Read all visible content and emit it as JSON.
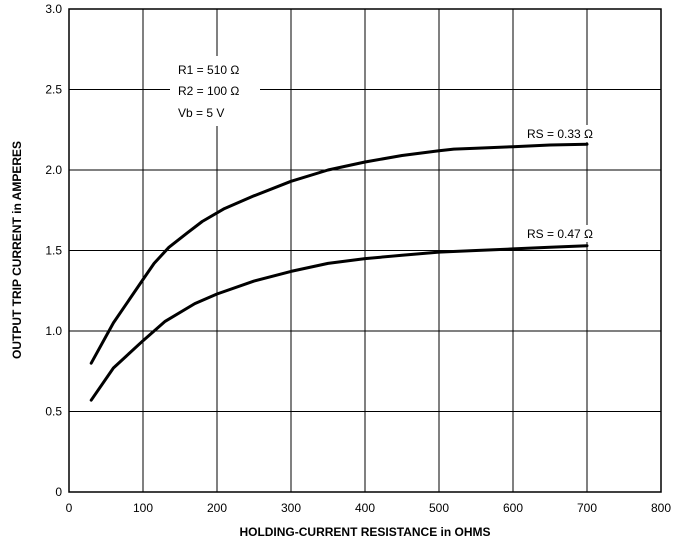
{
  "chart_data": {
    "type": "line",
    "title": "",
    "xlabel": "HOLDING-CURRENT RESISTANCE in OHMS",
    "ylabel": "OUTPUT TRIP CURRENT in AMPERES",
    "xlim": [
      0,
      800
    ],
    "ylim": [
      0,
      3.0
    ],
    "x_ticks": [
      "0",
      "100",
      "200",
      "300",
      "400",
      "500",
      "600",
      "700",
      "800"
    ],
    "y_ticks": [
      "0",
      "0.5",
      "1.0",
      "1.5",
      "2.0",
      "2.5",
      "3.0"
    ],
    "grid": true,
    "conditions": [
      "R1 = 510 Ω",
      "R2 = 100 Ω",
      "Vb = 5 V"
    ],
    "series": [
      {
        "name": "RS = 0.33 Ω",
        "x": [
          30,
          60,
          100,
          115,
          135,
          160,
          180,
          210,
          250,
          300,
          350,
          400,
          450,
          500,
          520,
          550,
          600,
          650,
          700
        ],
        "y": [
          0.8,
          1.05,
          1.32,
          1.42,
          1.52,
          1.61,
          1.68,
          1.76,
          1.84,
          1.93,
          2.0,
          2.05,
          2.09,
          2.12,
          2.13,
          2.135,
          2.145,
          2.155,
          2.16
        ]
      },
      {
        "name": "RS = 0.47 Ω",
        "x": [
          30,
          60,
          100,
          130,
          170,
          200,
          250,
          300,
          350,
          400,
          450,
          500,
          550,
          600,
          650,
          700
        ],
        "y": [
          0.57,
          0.77,
          0.94,
          1.06,
          1.17,
          1.23,
          1.31,
          1.37,
          1.42,
          1.45,
          1.47,
          1.49,
          1.5,
          1.51,
          1.52,
          1.53
        ]
      }
    ]
  }
}
